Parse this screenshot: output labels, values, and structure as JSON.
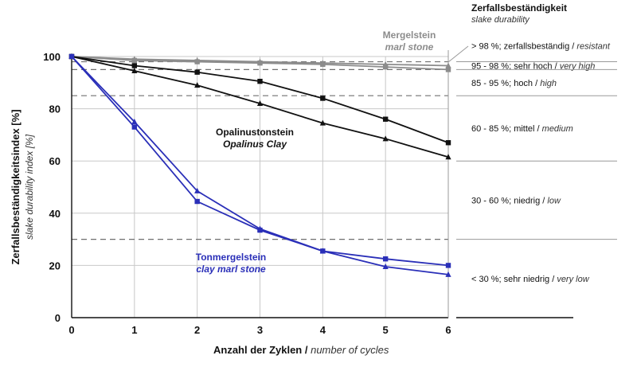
{
  "chart_data": {
    "type": "line",
    "title": "",
    "xlabel_de": "Anzahl der Zyklen",
    "xlabel_sep": " / ",
    "xlabel_en": "number of cycles",
    "ylabel_de": "Zerfallsbeständigkeitsindex  [%]",
    "ylabel_en": "slake durability index [%]",
    "x": [
      0,
      1,
      2,
      3,
      4,
      5,
      6
    ],
    "x_ticks": [
      "0",
      "1",
      "2",
      "3",
      "4",
      "5",
      "6"
    ],
    "y_ticks": [
      "0",
      "20",
      "40",
      "60",
      "80",
      "100"
    ],
    "xlim": [
      0,
      6
    ],
    "ylim": [
      0,
      100
    ],
    "grid": true,
    "series": [
      {
        "group": "marl",
        "marker": "square",
        "color": "#8c8c8c",
        "values": [
          100,
          98.5,
          98,
          97.5,
          97,
          96,
          95
        ]
      },
      {
        "group": "marl",
        "marker": "triangle",
        "color": "#8c8c8c",
        "values": [
          100,
          99,
          98.5,
          98,
          97.5,
          97,
          96.5
        ]
      },
      {
        "group": "opalinus",
        "marker": "square",
        "color": "#111111",
        "values": [
          100,
          96.5,
          94,
          90.5,
          84,
          76,
          67
        ]
      },
      {
        "group": "opalinus",
        "marker": "triangle",
        "color": "#111111",
        "values": [
          100,
          94.5,
          89,
          82,
          74.5,
          68.5,
          61.5
        ]
      },
      {
        "group": "clay",
        "marker": "square",
        "color": "#2a2fb8",
        "values": [
          100,
          73,
          44.5,
          33.5,
          25.5,
          22.5,
          20
        ]
      },
      {
        "group": "clay",
        "marker": "triangle",
        "color": "#2a2fb8",
        "values": [
          100,
          75,
          48.5,
          34,
          25.5,
          19.5,
          16.5
        ]
      }
    ],
    "annotations": {
      "marl": {
        "de": "Mergelstein",
        "en": "marl stone",
        "color": "#8c8c8c"
      },
      "opalinus": {
        "de": "Opalinustonstein",
        "en": "Opalinus Clay",
        "color": "#111111"
      },
      "clay": {
        "de": "Tonmergelstein",
        "en": "clay marl stone",
        "color": "#2a2fb8"
      }
    },
    "thresholds": [
      98,
      95,
      85,
      30
    ],
    "classification": {
      "title_de": "Zerfallsbeständigkeit",
      "title_en": "slake durability",
      "classes": [
        {
          "de": "> 98 %; zerfallsbeständig",
          "en": "resistant",
          "lower": 98,
          "upper": 100
        },
        {
          "de": "95 - 98 %; sehr hoch",
          "en": "very high",
          "lower": 95,
          "upper": 98
        },
        {
          "de": "85 - 95 %; hoch",
          "en": "high",
          "lower": 85,
          "upper": 95
        },
        {
          "de": "60 - 85 %; mittel",
          "en": "medium",
          "lower": 60,
          "upper": 85
        },
        {
          "de": "30 - 60 %; niedrig",
          "en": "low",
          "lower": 30,
          "upper": 60
        },
        {
          "de": "< 30 %; sehr niedrig",
          "en": "very low",
          "lower": 0,
          "upper": 30
        }
      ]
    }
  }
}
